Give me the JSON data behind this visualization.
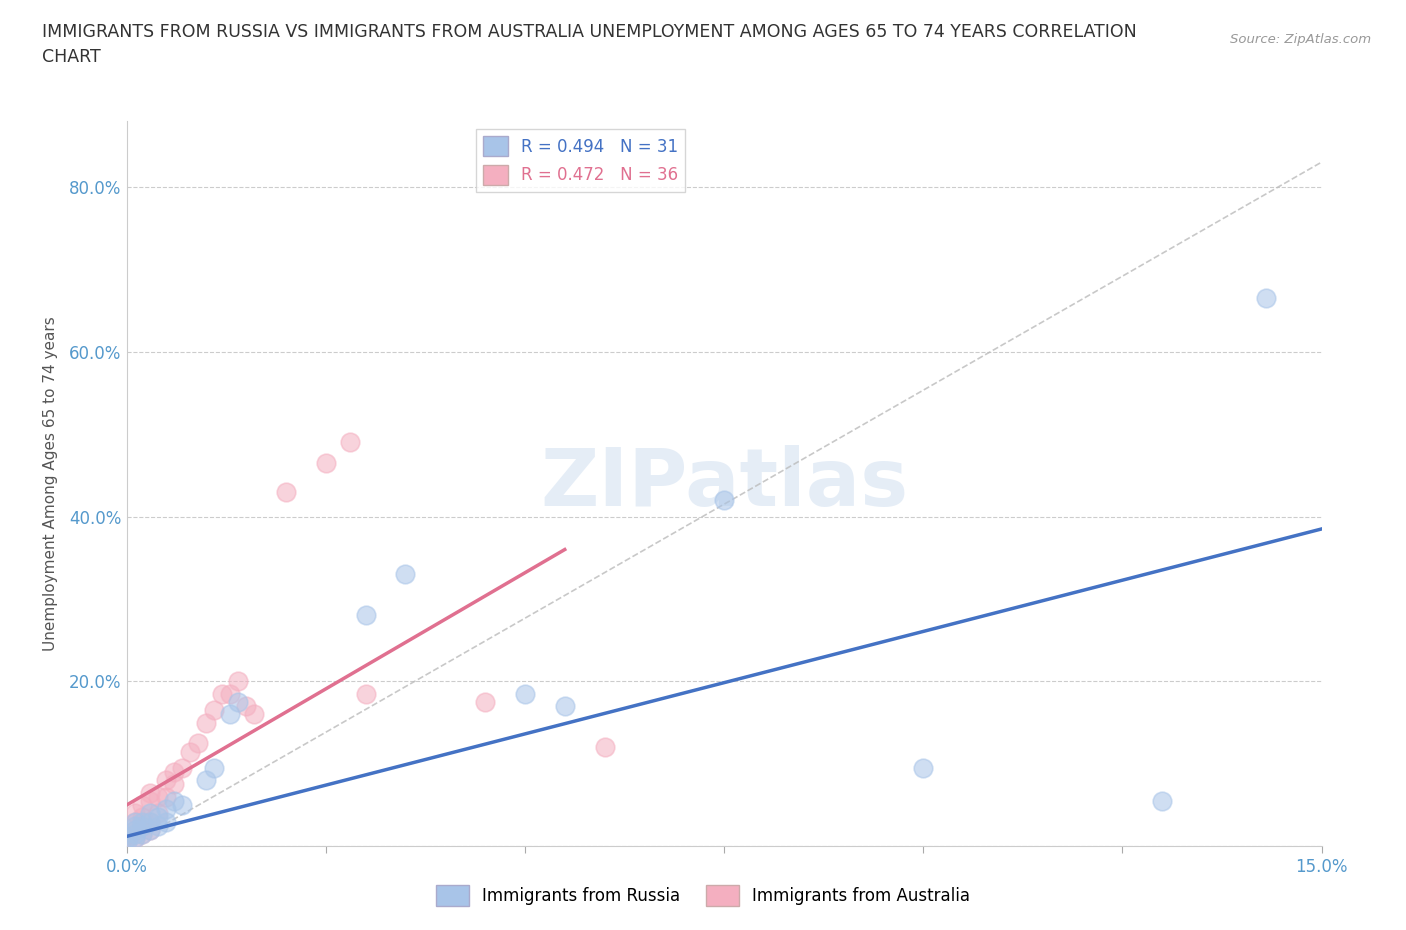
{
  "title": "IMMIGRANTS FROM RUSSIA VS IMMIGRANTS FROM AUSTRALIA UNEMPLOYMENT AMONG AGES 65 TO 74 YEARS CORRELATION\nCHART",
  "source": "Source: ZipAtlas.com",
  "ylabel": "Unemployment Among Ages 65 to 74 years",
  "xlim": [
    0.0,
    0.15
  ],
  "ylim": [
    0.0,
    0.88
  ],
  "yticks": [
    0.0,
    0.2,
    0.4,
    0.6,
    0.8
  ],
  "yticklabels": [
    "",
    "20.0%",
    "40.0%",
    "60.0%",
    "80.0%"
  ],
  "russia_R": 0.494,
  "russia_N": 31,
  "australia_R": 0.472,
  "australia_N": 36,
  "russia_color": "#a8c4e8",
  "australia_color": "#f4afc0",
  "russia_line_color": "#4472c4",
  "australia_line_color": "#e07090",
  "watermark": "ZIPatlas",
  "russia_x": [
    0.0,
    0.0,
    0.001,
    0.001,
    0.001,
    0.001,
    0.001,
    0.002,
    0.002,
    0.002,
    0.003,
    0.003,
    0.003,
    0.004,
    0.004,
    0.005,
    0.005,
    0.006,
    0.007,
    0.01,
    0.011,
    0.013,
    0.014,
    0.03,
    0.035,
    0.05,
    0.055,
    0.075,
    0.1,
    0.13,
    0.143
  ],
  "russia_y": [
    0.005,
    0.01,
    0.01,
    0.015,
    0.02,
    0.025,
    0.03,
    0.015,
    0.025,
    0.03,
    0.02,
    0.03,
    0.04,
    0.025,
    0.035,
    0.03,
    0.045,
    0.055,
    0.05,
    0.08,
    0.095,
    0.16,
    0.175,
    0.28,
    0.33,
    0.185,
    0.17,
    0.42,
    0.095,
    0.055,
    0.665
  ],
  "australia_x": [
    0.0,
    0.0,
    0.001,
    0.001,
    0.001,
    0.001,
    0.002,
    0.002,
    0.002,
    0.002,
    0.003,
    0.003,
    0.003,
    0.003,
    0.004,
    0.004,
    0.005,
    0.005,
    0.006,
    0.006,
    0.007,
    0.008,
    0.009,
    0.01,
    0.011,
    0.012,
    0.013,
    0.014,
    0.015,
    0.016,
    0.02,
    0.025,
    0.028,
    0.03,
    0.045,
    0.06
  ],
  "australia_y": [
    0.005,
    0.01,
    0.01,
    0.02,
    0.03,
    0.04,
    0.015,
    0.025,
    0.035,
    0.05,
    0.02,
    0.03,
    0.055,
    0.065,
    0.04,
    0.06,
    0.06,
    0.08,
    0.075,
    0.09,
    0.095,
    0.115,
    0.125,
    0.15,
    0.165,
    0.185,
    0.185,
    0.2,
    0.17,
    0.16,
    0.43,
    0.465,
    0.49,
    0.185,
    0.175,
    0.12
  ]
}
